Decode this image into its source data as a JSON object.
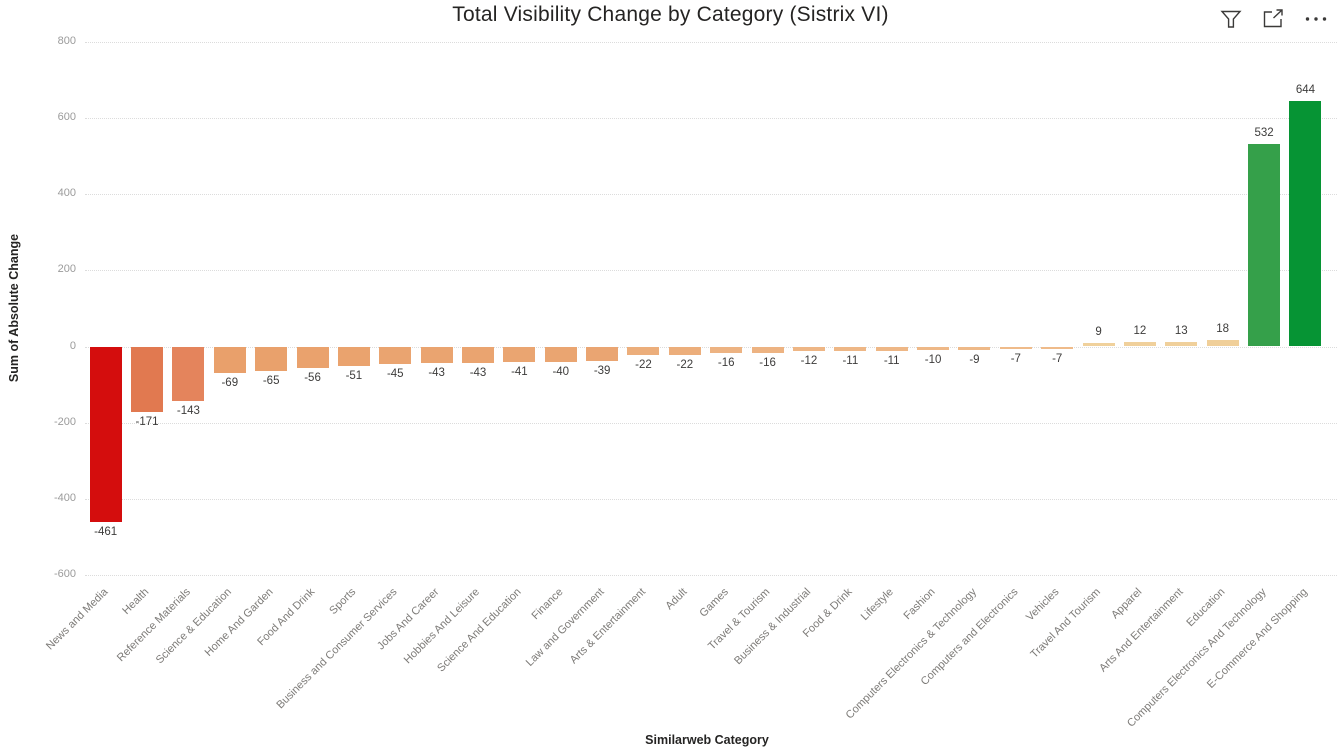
{
  "header": {
    "title": "Total Visibility Change by Category (Sistrix VI)",
    "icons": [
      {
        "name": "filter-icon"
      },
      {
        "name": "focus-mode-icon"
      },
      {
        "name": "more-options-icon"
      }
    ],
    "icon_color": "#3b3a39"
  },
  "chart_data": {
    "type": "bar",
    "title": "Total Visibility Change by Category (Sistrix VI)",
    "xlabel": "Similarweb Category",
    "ylabel": "Sum of Absolute Change",
    "ylim": [
      -600,
      800
    ],
    "yticks": [
      800,
      600,
      400,
      200,
      0,
      -200,
      -400,
      -600
    ],
    "grid": "horizontal-dotted",
    "legend": "none",
    "data_labels": "on",
    "categories": [
      "News and Media",
      "Health",
      "Reference Materials",
      "Science & Education",
      "Home And Garden",
      "Food And Drink",
      "Sports",
      "Business and Consumer Services",
      "Jobs And Career",
      "Hobbies And Leisure",
      "Science And Education",
      "Finance",
      "Law and Government",
      "Arts & Entertainment",
      "Adult",
      "Games",
      "Travel & Tourism",
      "Business & Industrial",
      "Food & Drink",
      "Lifestyle",
      "Fashion",
      "Computers Electronics & Technology",
      "Computers and Electronics",
      "Vehicles",
      "Travel And Tourism",
      "Apparel",
      "Arts And Entertainment",
      "Education",
      "Computers Electronics And Technology",
      "E-Commerce And Shopping"
    ],
    "values": [
      -461,
      -171,
      -143,
      -69,
      -65,
      -56,
      -51,
      -45,
      -43,
      -43,
      -41,
      -40,
      -39,
      -22,
      -22,
      -16,
      -16,
      -12,
      -11,
      -11,
      -10,
      -9,
      -7,
      -7,
      9,
      12,
      13,
      18,
      532,
      644
    ],
    "bar_colors": [
      "#d40d0d",
      "#e17950",
      "#e4845c",
      "#e9a06b",
      "#e9a16c",
      "#eaa26d",
      "#eaa36e",
      "#eaa470",
      "#eaa470",
      "#eaa470",
      "#eaa571",
      "#eaa571",
      "#eaa572",
      "#ecae7b",
      "#ecae7b",
      "#edb382",
      "#edb382",
      "#eeb685",
      "#eeb786",
      "#eeb786",
      "#eeb887",
      "#eeb988",
      "#efbb8a",
      "#efbb8a",
      "#f0d19c",
      "#f0d09b",
      "#f0d09b",
      "#f0cf99",
      "#35a04a",
      "#069434"
    ]
  }
}
